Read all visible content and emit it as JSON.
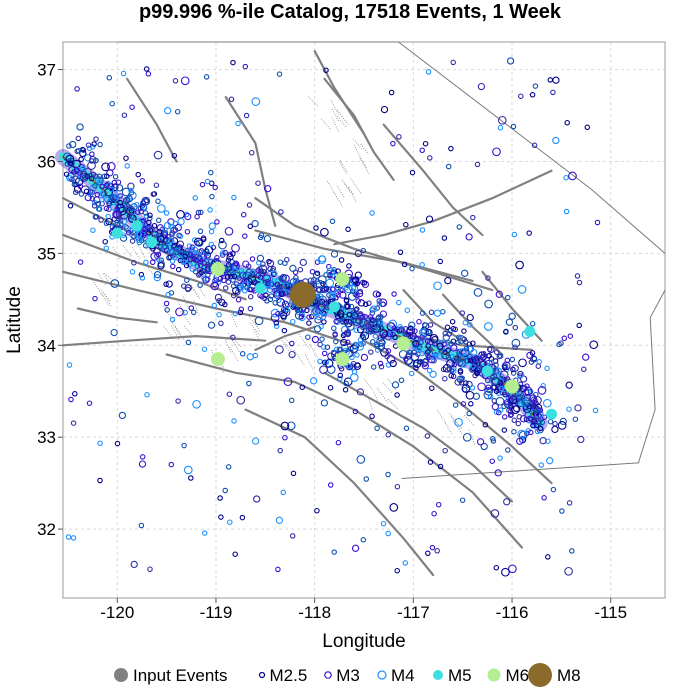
{
  "chart_data": {
    "type": "scatter",
    "title": "p99.996 %-ile Catalog, 17518 Events, 1 Week",
    "xlabel": "Longitude",
    "ylabel": "Latitude",
    "xlim": [
      -120.55,
      -114.45
    ],
    "ylim": [
      31.25,
      37.3
    ],
    "xticks": [
      -120,
      -119,
      -118,
      -117,
      -116,
      -115
    ],
    "yticks": [
      32,
      33,
      34,
      35,
      36,
      37
    ],
    "grid": true,
    "legend_position": "bottom",
    "legend": [
      {
        "label": "Input Events",
        "color": "#808080",
        "style": "filled"
      },
      {
        "label": "M2.5",
        "color": "#00008b",
        "style": "ring"
      },
      {
        "label": "M3",
        "color": "#3a0fd0",
        "style": "ring"
      },
      {
        "label": "M4",
        "color": "#1e90ff",
        "style": "ring"
      },
      {
        "label": "M5",
        "color": "#3de0e0",
        "style": "filled"
      },
      {
        "label": "M6",
        "color": "#b5ee90",
        "style": "filled"
      },
      {
        "label": "M8",
        "color": "#8b6b2b",
        "style": "filled"
      }
    ],
    "input_events": {
      "description_free": true,
      "trace": [
        [
          -120.55,
          36.05
        ],
        [
          -120.2,
          35.75
        ],
        [
          -119.9,
          35.45
        ],
        [
          -119.6,
          35.15
        ],
        [
          -119.2,
          34.9
        ],
        [
          -118.8,
          34.8
        ],
        [
          -118.4,
          34.68
        ],
        [
          -118.0,
          34.45
        ],
        [
          -117.6,
          34.3
        ],
        [
          -117.2,
          34.12
        ],
        [
          -116.8,
          33.95
        ],
        [
          -116.4,
          33.82
        ],
        [
          -116.1,
          33.6
        ],
        [
          -115.9,
          33.4
        ],
        [
          -115.72,
          33.15
        ]
      ]
    },
    "series": [
      {
        "name": "M5",
        "points": [
          [
            -120.0,
            35.22
          ],
          [
            -119.8,
            35.3
          ],
          [
            -119.65,
            35.12
          ],
          [
            -118.55,
            34.62
          ],
          [
            -117.8,
            34.42
          ],
          [
            -116.25,
            33.72
          ],
          [
            -115.6,
            33.25
          ],
          [
            -115.82,
            34.15
          ]
        ]
      },
      {
        "name": "M6",
        "points": [
          [
            -118.98,
            34.83
          ],
          [
            -117.72,
            34.72
          ],
          [
            -118.98,
            33.85
          ],
          [
            -117.72,
            33.85
          ],
          [
            -117.1,
            34.02
          ],
          [
            -116.0,
            33.55
          ]
        ]
      },
      {
        "name": "M8",
        "points": [
          [
            -118.12,
            34.55
          ]
        ]
      }
    ],
    "colors": {
      "grid": "#d9d9d9",
      "fault": "#808080",
      "trace_band": "#3de0e0",
      "trace_line": "#8b6b2b"
    }
  }
}
